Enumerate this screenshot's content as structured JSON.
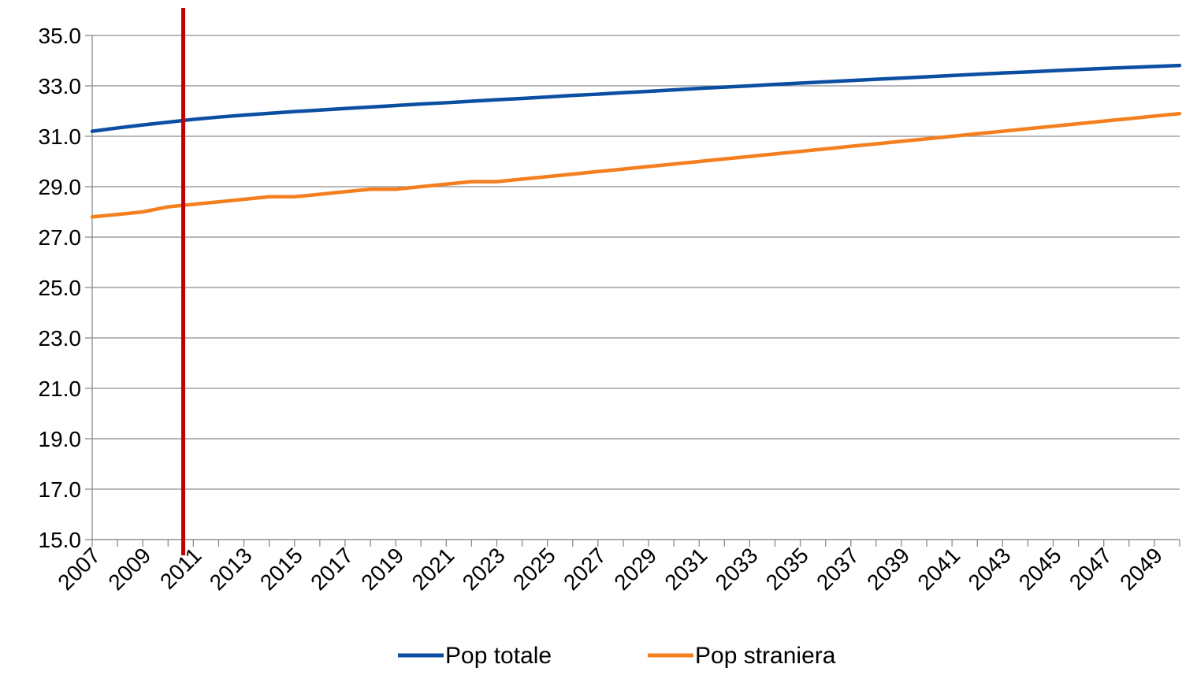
{
  "chart_data": {
    "type": "line",
    "title": "",
    "xlabel": "",
    "ylabel": "",
    "ylim": [
      15.0,
      35.0
    ],
    "y_ticks": [
      "15.0",
      "17.0",
      "19.0",
      "21.0",
      "23.0",
      "25.0",
      "27.0",
      "29.0",
      "31.0",
      "33.0",
      "35.0"
    ],
    "x": [
      2007,
      2008,
      2009,
      2010,
      2011,
      2012,
      2013,
      2014,
      2015,
      2016,
      2017,
      2018,
      2019,
      2020,
      2021,
      2022,
      2023,
      2024,
      2025,
      2026,
      2027,
      2028,
      2029,
      2030,
      2031,
      2032,
      2033,
      2034,
      2035,
      2036,
      2037,
      2038,
      2039,
      2040,
      2041,
      2042,
      2043,
      2044,
      2045,
      2046,
      2047,
      2048,
      2049,
      2050
    ],
    "x_tick_labels": [
      "2007",
      "2009",
      "2011",
      "2013",
      "2015",
      "2017",
      "2019",
      "2021",
      "2023",
      "2025",
      "2027",
      "2029",
      "2031",
      "2033",
      "2035",
      "2037",
      "2039",
      "2041",
      "2043",
      "2045",
      "2047",
      "2049"
    ],
    "grid": "horizontal",
    "legend_position": "bottom",
    "marker_line": {
      "x": 2010.6,
      "color": "#C00000"
    },
    "series": [
      {
        "name": "Pop totale",
        "color": "#0B4EA2",
        "values": [
          31.2,
          31.33,
          31.45,
          31.56,
          31.67,
          31.76,
          31.84,
          31.91,
          31.98,
          32.04,
          32.1,
          32.16,
          32.22,
          32.28,
          32.33,
          32.39,
          32.45,
          32.5,
          32.56,
          32.62,
          32.67,
          32.73,
          32.78,
          32.84,
          32.9,
          32.95,
          33.0,
          33.06,
          33.11,
          33.16,
          33.21,
          33.26,
          33.31,
          33.36,
          33.41,
          33.46,
          33.51,
          33.55,
          33.6,
          33.65,
          33.69,
          33.73,
          33.77,
          33.81
        ]
      },
      {
        "name": "Pop straniera",
        "color": "#F47F1F",
        "values": [
          27.8,
          27.9,
          28.0,
          28.2,
          28.3,
          28.4,
          28.5,
          28.6,
          28.6,
          28.7,
          28.8,
          28.9,
          28.9,
          29.0,
          29.1,
          29.2,
          29.2,
          29.3,
          29.4,
          29.5,
          29.6,
          29.7,
          29.8,
          29.9,
          30.0,
          30.1,
          30.2,
          30.3,
          30.4,
          30.5,
          30.6,
          30.7,
          30.8,
          30.9,
          31.0,
          31.1,
          31.2,
          31.3,
          31.4,
          31.5,
          31.6,
          31.7,
          31.8,
          31.9
        ]
      }
    ]
  }
}
